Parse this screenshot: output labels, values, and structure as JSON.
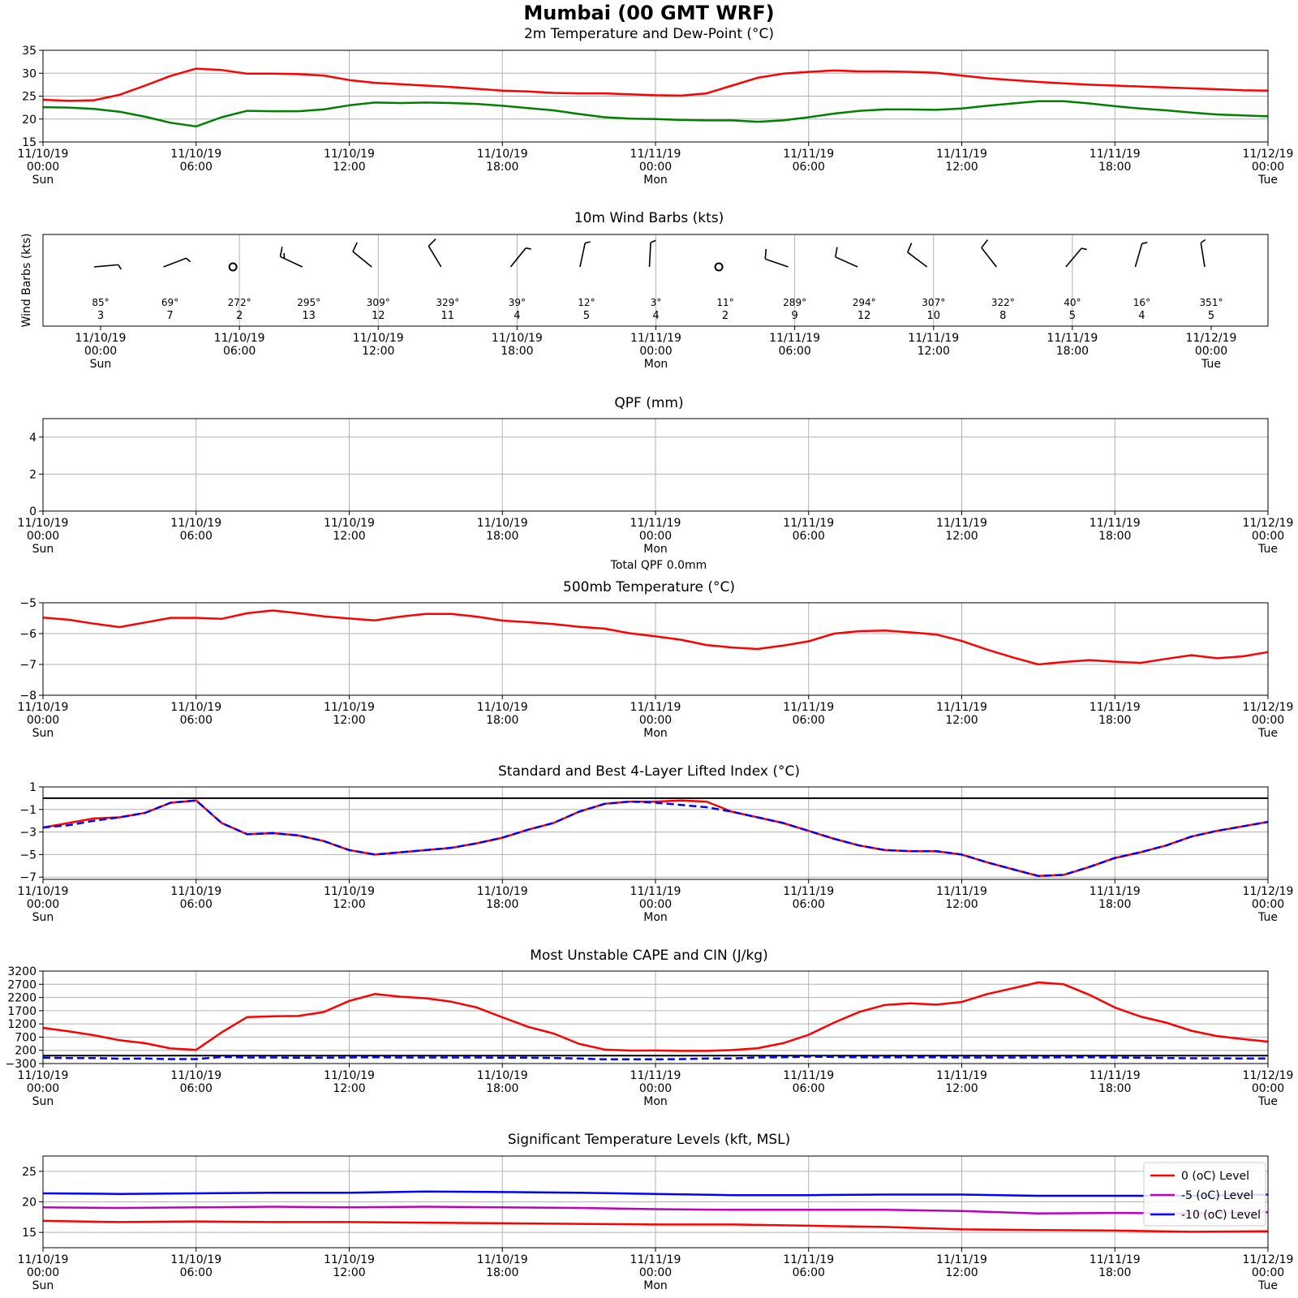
{
  "title": "Mumbai (00 GMT WRF)",
  "time_ticks": [
    {
      "date": "11/10/19",
      "time": "00:00",
      "day": "Sun"
    },
    {
      "date": "11/10/19",
      "time": "06:00",
      "day": ""
    },
    {
      "date": "11/10/19",
      "time": "12:00",
      "day": ""
    },
    {
      "date": "11/10/19",
      "time": "18:00",
      "day": ""
    },
    {
      "date": "11/11/19",
      "time": "00:00",
      "day": "Mon"
    },
    {
      "date": "11/11/19",
      "time": "06:00",
      "day": ""
    },
    {
      "date": "11/11/19",
      "time": "12:00",
      "day": ""
    },
    {
      "date": "11/11/19",
      "time": "18:00",
      "day": ""
    },
    {
      "date": "11/12/19",
      "time": "00:00",
      "day": "Tue"
    }
  ],
  "chart_data": [
    {
      "type": "line",
      "title": "2m Temperature and Dew-Point (°C)",
      "x_unit": "hours from 11/10/19 00:00",
      "ylim": [
        15,
        35
      ],
      "yticks": [
        15,
        20,
        25,
        30,
        35
      ],
      "grid": true,
      "series": [
        {
          "color": "#ff0000",
          "style": "solid",
          "x": [
            0,
            1,
            2,
            3,
            4,
            5,
            6,
            7,
            8,
            9,
            10,
            11,
            12,
            13,
            14,
            15,
            16,
            17,
            18,
            19,
            20,
            21,
            22,
            23,
            24,
            25,
            26,
            27,
            28,
            29,
            30,
            31,
            32,
            33,
            34,
            35,
            36,
            37,
            38,
            39,
            40,
            41,
            42,
            43,
            44,
            45,
            46,
            47,
            48
          ],
          "values": [
            24.2,
            24.0,
            24.1,
            25.3,
            27.3,
            29.4,
            31.0,
            30.7,
            29.9,
            29.9,
            29.8,
            29.5,
            28.5,
            27.9,
            27.6,
            27.3,
            27.0,
            26.6,
            26.2,
            26.0,
            25.7,
            25.6,
            25.6,
            25.4,
            25.2,
            25.1,
            25.6,
            27.3,
            29.0,
            29.9,
            30.3,
            30.6,
            30.4,
            30.4,
            30.3,
            30.1,
            29.5,
            28.9,
            28.5,
            28.1,
            27.8,
            27.5,
            27.3,
            27.1,
            26.9,
            26.7,
            26.5,
            26.3,
            26.2
          ]
        },
        {
          "color": "#008000",
          "style": "solid",
          "x": [
            0,
            1,
            2,
            3,
            4,
            5,
            6,
            7,
            8,
            9,
            10,
            11,
            12,
            13,
            14,
            15,
            16,
            17,
            18,
            19,
            20,
            21,
            22,
            23,
            24,
            25,
            26,
            27,
            28,
            29,
            30,
            31,
            32,
            33,
            34,
            35,
            36,
            37,
            38,
            39,
            40,
            41,
            42,
            43,
            44,
            45,
            46,
            47,
            48
          ],
          "values": [
            22.6,
            22.5,
            22.2,
            21.6,
            20.5,
            19.2,
            18.4,
            20.4,
            21.8,
            21.7,
            21.7,
            22.1,
            23.0,
            23.6,
            23.5,
            23.6,
            23.5,
            23.3,
            22.9,
            22.4,
            21.9,
            21.1,
            20.4,
            20.1,
            20.0,
            19.8,
            19.7,
            19.7,
            19.4,
            19.7,
            20.4,
            21.2,
            21.8,
            22.1,
            22.1,
            22.0,
            22.3,
            22.9,
            23.4,
            23.9,
            23.9,
            23.4,
            22.8,
            22.3,
            21.9,
            21.4,
            21.0,
            20.8,
            20.6
          ]
        }
      ]
    },
    {
      "type": "wind_barbs",
      "title": "10m Wind Barbs (kts)",
      "ylabel": "Wind Barbs (kts)",
      "x_unit": "hours from 11/10/19 00:00",
      "grid": true,
      "x": [
        0,
        3,
        6,
        9,
        12,
        15,
        18,
        21,
        24,
        27,
        30,
        33,
        36,
        39,
        42,
        45,
        48
      ],
      "directions": [
        85,
        69,
        272,
        295,
        309,
        329,
        39,
        12,
        3,
        11,
        289,
        294,
        307,
        322,
        40,
        16,
        351
      ],
      "speeds": [
        3,
        7,
        2,
        13,
        12,
        11,
        4,
        5,
        4,
        2,
        9,
        12,
        10,
        8,
        5,
        4,
        5
      ],
      "direction_labels": [
        "85$^\\circ$",
        "69$^\\circ$",
        "272$^\\circ$",
        "295$^\\circ$",
        "309$^\\circ$",
        "329$^\\circ$",
        "39$^\\circ$",
        "12$^\\circ$",
        "3$^\\circ$",
        "11$^\\circ$",
        "289$^\\circ$",
        "294$^\\circ$",
        "307$^\\circ$",
        "322$^\\circ$",
        "40$^\\circ$",
        "16$^\\circ$",
        "351$^\\circ$"
      ],
      "speed_labels": [
        "3",
        "7",
        "2",
        "13",
        "12",
        "11",
        "4",
        "5",
        "4",
        "2",
        "9",
        "12",
        "10",
        "8",
        "5",
        "4",
        "5"
      ]
    },
    {
      "type": "bar",
      "title": "QPF (mm)",
      "x_unit": "hours from 11/10/19 00:00",
      "ylim": [
        0,
        5
      ],
      "yticks": [
        0,
        2,
        4
      ],
      "grid": true,
      "x": [
        0,
        3,
        6,
        9,
        12,
        15,
        18,
        21,
        24,
        27,
        30,
        33,
        36,
        39,
        42,
        45,
        48
      ],
      "values": [
        0,
        0,
        0,
        0,
        0,
        0,
        0,
        0,
        0,
        0,
        0,
        0,
        0,
        0,
        0,
        0,
        0
      ],
      "footer": "Total QPF 0.0mm"
    },
    {
      "type": "line",
      "title": "500mb Temperature (°C)",
      "x_unit": "hours from 11/10/19 00:00",
      "ylim": [
        -8,
        -5
      ],
      "yticks": [
        -8,
        -7,
        -6,
        -5
      ],
      "grid": true,
      "series": [
        {
          "color": "#ff0000",
          "style": "solid",
          "x": [
            0,
            1,
            2,
            3,
            4,
            5,
            6,
            7,
            8,
            9,
            10,
            11,
            12,
            13,
            14,
            15,
            16,
            17,
            18,
            19,
            20,
            21,
            22,
            23,
            24,
            25,
            26,
            27,
            28,
            29,
            30,
            31,
            32,
            33,
            34,
            35,
            36,
            37,
            38,
            39,
            40,
            41,
            42,
            43,
            44,
            45,
            46,
            47,
            48
          ],
          "values": [
            -5.48,
            -5.55,
            -5.68,
            -5.79,
            -5.64,
            -5.49,
            -5.49,
            -5.52,
            -5.34,
            -5.25,
            -5.34,
            -5.44,
            -5.51,
            -5.57,
            -5.45,
            -5.36,
            -5.36,
            -5.45,
            -5.58,
            -5.63,
            -5.69,
            -5.78,
            -5.84,
            -5.99,
            -6.09,
            -6.2,
            -6.37,
            -6.45,
            -6.5,
            -6.39,
            -6.25,
            -6.0,
            -5.92,
            -5.9,
            -5.96,
            -6.03,
            -6.24,
            -6.52,
            -6.77,
            -7.0,
            -6.92,
            -6.86,
            -6.91,
            -6.95,
            -6.82,
            -6.7,
            -6.8,
            -6.74,
            -6.6
          ]
        }
      ]
    },
    {
      "type": "line",
      "title": "Standard and Best 4-Layer Lifted Index (°C)",
      "x_unit": "hours from 11/10/19 00:00",
      "ylim": [
        -7.2,
        1
      ],
      "yticks": [
        -7,
        -5,
        -3,
        -1,
        1
      ],
      "grid": true,
      "reference_line": 0,
      "series": [
        {
          "color": "#ff0000",
          "style": "solid",
          "x": [
            0,
            1,
            2,
            3,
            4,
            5,
            6,
            7,
            8,
            9,
            10,
            11,
            12,
            13,
            14,
            15,
            16,
            17,
            18,
            19,
            20,
            21,
            22,
            23,
            24,
            25,
            26,
            27,
            28,
            29,
            30,
            31,
            32,
            33,
            34,
            35,
            36,
            37,
            38,
            39,
            40,
            41,
            42,
            43,
            44,
            45,
            46,
            47,
            48
          ],
          "values": [
            -2.6,
            -2.2,
            -1.8,
            -1.7,
            -1.3,
            -0.4,
            -0.2,
            -2.2,
            -3.2,
            -3.1,
            -3.3,
            -3.8,
            -4.6,
            -5.0,
            -4.8,
            -4.6,
            -4.4,
            -4.0,
            -3.5,
            -2.8,
            -2.2,
            -1.2,
            -0.5,
            -0.3,
            -0.3,
            -0.2,
            -0.3,
            -1.2,
            -1.7,
            -2.2,
            -2.9,
            -3.6,
            -4.2,
            -4.6,
            -4.7,
            -4.7,
            -5.0,
            -5.7,
            -6.3,
            -6.9,
            -6.8,
            -6.1,
            -5.3,
            -4.8,
            -4.2,
            -3.4,
            -2.9,
            -2.5,
            -2.1
          ]
        },
        {
          "color": "#0000ff",
          "style": "dashed",
          "x": [
            0,
            1,
            2,
            3,
            4,
            5,
            6,
            7,
            8,
            9,
            10,
            11,
            12,
            13,
            14,
            15,
            16,
            17,
            18,
            19,
            20,
            21,
            22,
            23,
            24,
            25,
            26,
            27,
            28,
            29,
            30,
            31,
            32,
            33,
            34,
            35,
            36,
            37,
            38,
            39,
            40,
            41,
            42,
            43,
            44,
            45,
            46,
            47,
            48
          ],
          "values": [
            -2.6,
            -2.4,
            -2.0,
            -1.7,
            -1.3,
            -0.4,
            -0.2,
            -2.2,
            -3.2,
            -3.1,
            -3.3,
            -3.8,
            -4.6,
            -5.0,
            -4.8,
            -4.6,
            -4.4,
            -4.0,
            -3.5,
            -2.8,
            -2.2,
            -1.2,
            -0.5,
            -0.3,
            -0.4,
            -0.6,
            -0.8,
            -1.2,
            -1.7,
            -2.2,
            -2.9,
            -3.6,
            -4.2,
            -4.6,
            -4.7,
            -4.7,
            -5.0,
            -5.7,
            -6.3,
            -6.9,
            -6.8,
            -6.1,
            -5.3,
            -4.8,
            -4.2,
            -3.4,
            -2.9,
            -2.5,
            -2.1
          ]
        }
      ]
    },
    {
      "type": "line",
      "title": "Most Unstable CAPE and CIN (J/kg)",
      "x_unit": "hours from 11/10/19 00:00",
      "ylim": [
        -300,
        3200
      ],
      "yticks": [
        -300,
        200,
        700,
        1200,
        1700,
        2200,
        2700,
        3200
      ],
      "grid": true,
      "reference_line": 0,
      "series": [
        {
          "color": "#ff0000",
          "style": "solid",
          "x": [
            0,
            1,
            2,
            3,
            4,
            5,
            6,
            7,
            8,
            9,
            10,
            11,
            12,
            13,
            14,
            15,
            16,
            17,
            18,
            19,
            20,
            21,
            22,
            23,
            24,
            25,
            26,
            27,
            28,
            29,
            30,
            31,
            32,
            33,
            34,
            35,
            36,
            37,
            38,
            39,
            40,
            41,
            42,
            43,
            44,
            45,
            46,
            47,
            48
          ],
          "values": [
            1050,
            920,
            770,
            580,
            470,
            270,
            220,
            880,
            1460,
            1490,
            1500,
            1650,
            2070,
            2330,
            2230,
            2170,
            2040,
            1820,
            1450,
            1090,
            840,
            450,
            230,
            190,
            195,
            180,
            180,
            210,
            280,
            470,
            790,
            1250,
            1660,
            1920,
            1980,
            1930,
            2030,
            2330,
            2550,
            2770,
            2700,
            2300,
            1820,
            1480,
            1250,
            940,
            740,
            630,
            530
          ]
        },
        {
          "color": "#0000ff",
          "style": "dashed",
          "x": [
            0,
            1,
            2,
            3,
            4,
            5,
            6,
            7,
            8,
            9,
            10,
            11,
            12,
            13,
            14,
            15,
            16,
            17,
            18,
            19,
            20,
            21,
            22,
            23,
            24,
            25,
            26,
            27,
            28,
            29,
            30,
            31,
            32,
            33,
            34,
            35,
            36,
            37,
            38,
            39,
            40,
            41,
            42,
            43,
            44,
            45,
            46,
            47,
            48
          ],
          "values": [
            -80,
            -90,
            -90,
            -120,
            -110,
            -130,
            -130,
            -50,
            -70,
            -70,
            -80,
            -80,
            -70,
            -60,
            -70,
            -70,
            -70,
            -70,
            -80,
            -80,
            -90,
            -110,
            -140,
            -140,
            -140,
            -130,
            -110,
            -110,
            -70,
            -60,
            -40,
            -50,
            -60,
            -60,
            -60,
            -60,
            -70,
            -70,
            -70,
            -70,
            -60,
            -60,
            -70,
            -80,
            -90,
            -100,
            -100,
            -110,
            -110
          ]
        }
      ]
    },
    {
      "type": "line",
      "title": "Significant Temperature Levels (kft, MSL)",
      "x_unit": "hours from 11/10/19 00:00",
      "ylim": [
        12.5,
        27.5
      ],
      "yticks": [
        15,
        20,
        25
      ],
      "grid": true,
      "legend_position": "top-right",
      "series": [
        {
          "name": "0 ($^o$C) Level",
          "color": "#ff0000",
          "style": "solid",
          "x": [
            0,
            3,
            6,
            9,
            12,
            15,
            18,
            21,
            24,
            27,
            30,
            33,
            36,
            39,
            42,
            45,
            48
          ],
          "values": [
            16.9,
            16.7,
            16.8,
            16.7,
            16.7,
            16.6,
            16.5,
            16.4,
            16.3,
            16.3,
            16.1,
            15.9,
            15.5,
            15.4,
            15.3,
            15.1,
            15.2
          ]
        },
        {
          "name": "-5 ($^o$C) Level",
          "color": "#bf00bf",
          "style": "solid",
          "x": [
            0,
            3,
            6,
            9,
            12,
            15,
            18,
            21,
            24,
            27,
            30,
            33,
            36,
            39,
            42,
            45,
            48
          ],
          "values": [
            19.1,
            19.0,
            19.1,
            19.2,
            19.1,
            19.2,
            19.1,
            19.0,
            18.8,
            18.7,
            18.7,
            18.7,
            18.5,
            18.1,
            18.2,
            18.1,
            18.3
          ]
        },
        {
          "name": "-10 ($^o$C) Level",
          "color": "#0000ff",
          "style": "solid",
          "x": [
            0,
            3,
            6,
            9,
            12,
            15,
            18,
            21,
            24,
            27,
            30,
            33,
            36,
            39,
            42,
            45,
            48
          ],
          "values": [
            21.4,
            21.3,
            21.4,
            21.5,
            21.5,
            21.7,
            21.6,
            21.5,
            21.3,
            21.1,
            21.1,
            21.2,
            21.2,
            21.0,
            21.0,
            21.0,
            21.2
          ]
        }
      ]
    }
  ]
}
